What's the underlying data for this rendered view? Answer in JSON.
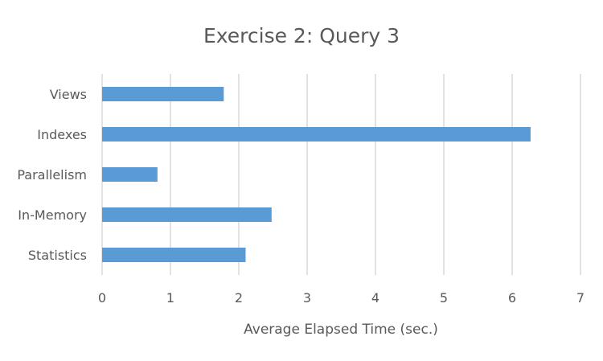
{
  "chart_data": {
    "type": "bar",
    "orientation": "horizontal",
    "title": "Exercise 2: Query 3",
    "xlabel": "Average Elapsed Time (sec.)",
    "ylabel": "",
    "categories": [
      "Views",
      "Indexes",
      "Parallelism",
      "In-Memory",
      "Statistics"
    ],
    "values": [
      1.78,
      6.27,
      0.81,
      2.48,
      2.1
    ],
    "xlim": [
      0,
      7
    ],
    "x_ticks": [
      0,
      1,
      2,
      3,
      4,
      5,
      6,
      7
    ],
    "grid": true,
    "legend": "none",
    "colors": {
      "bar": "#5b9bd5",
      "grid": "#d9d9d9",
      "text": "#595959"
    }
  }
}
